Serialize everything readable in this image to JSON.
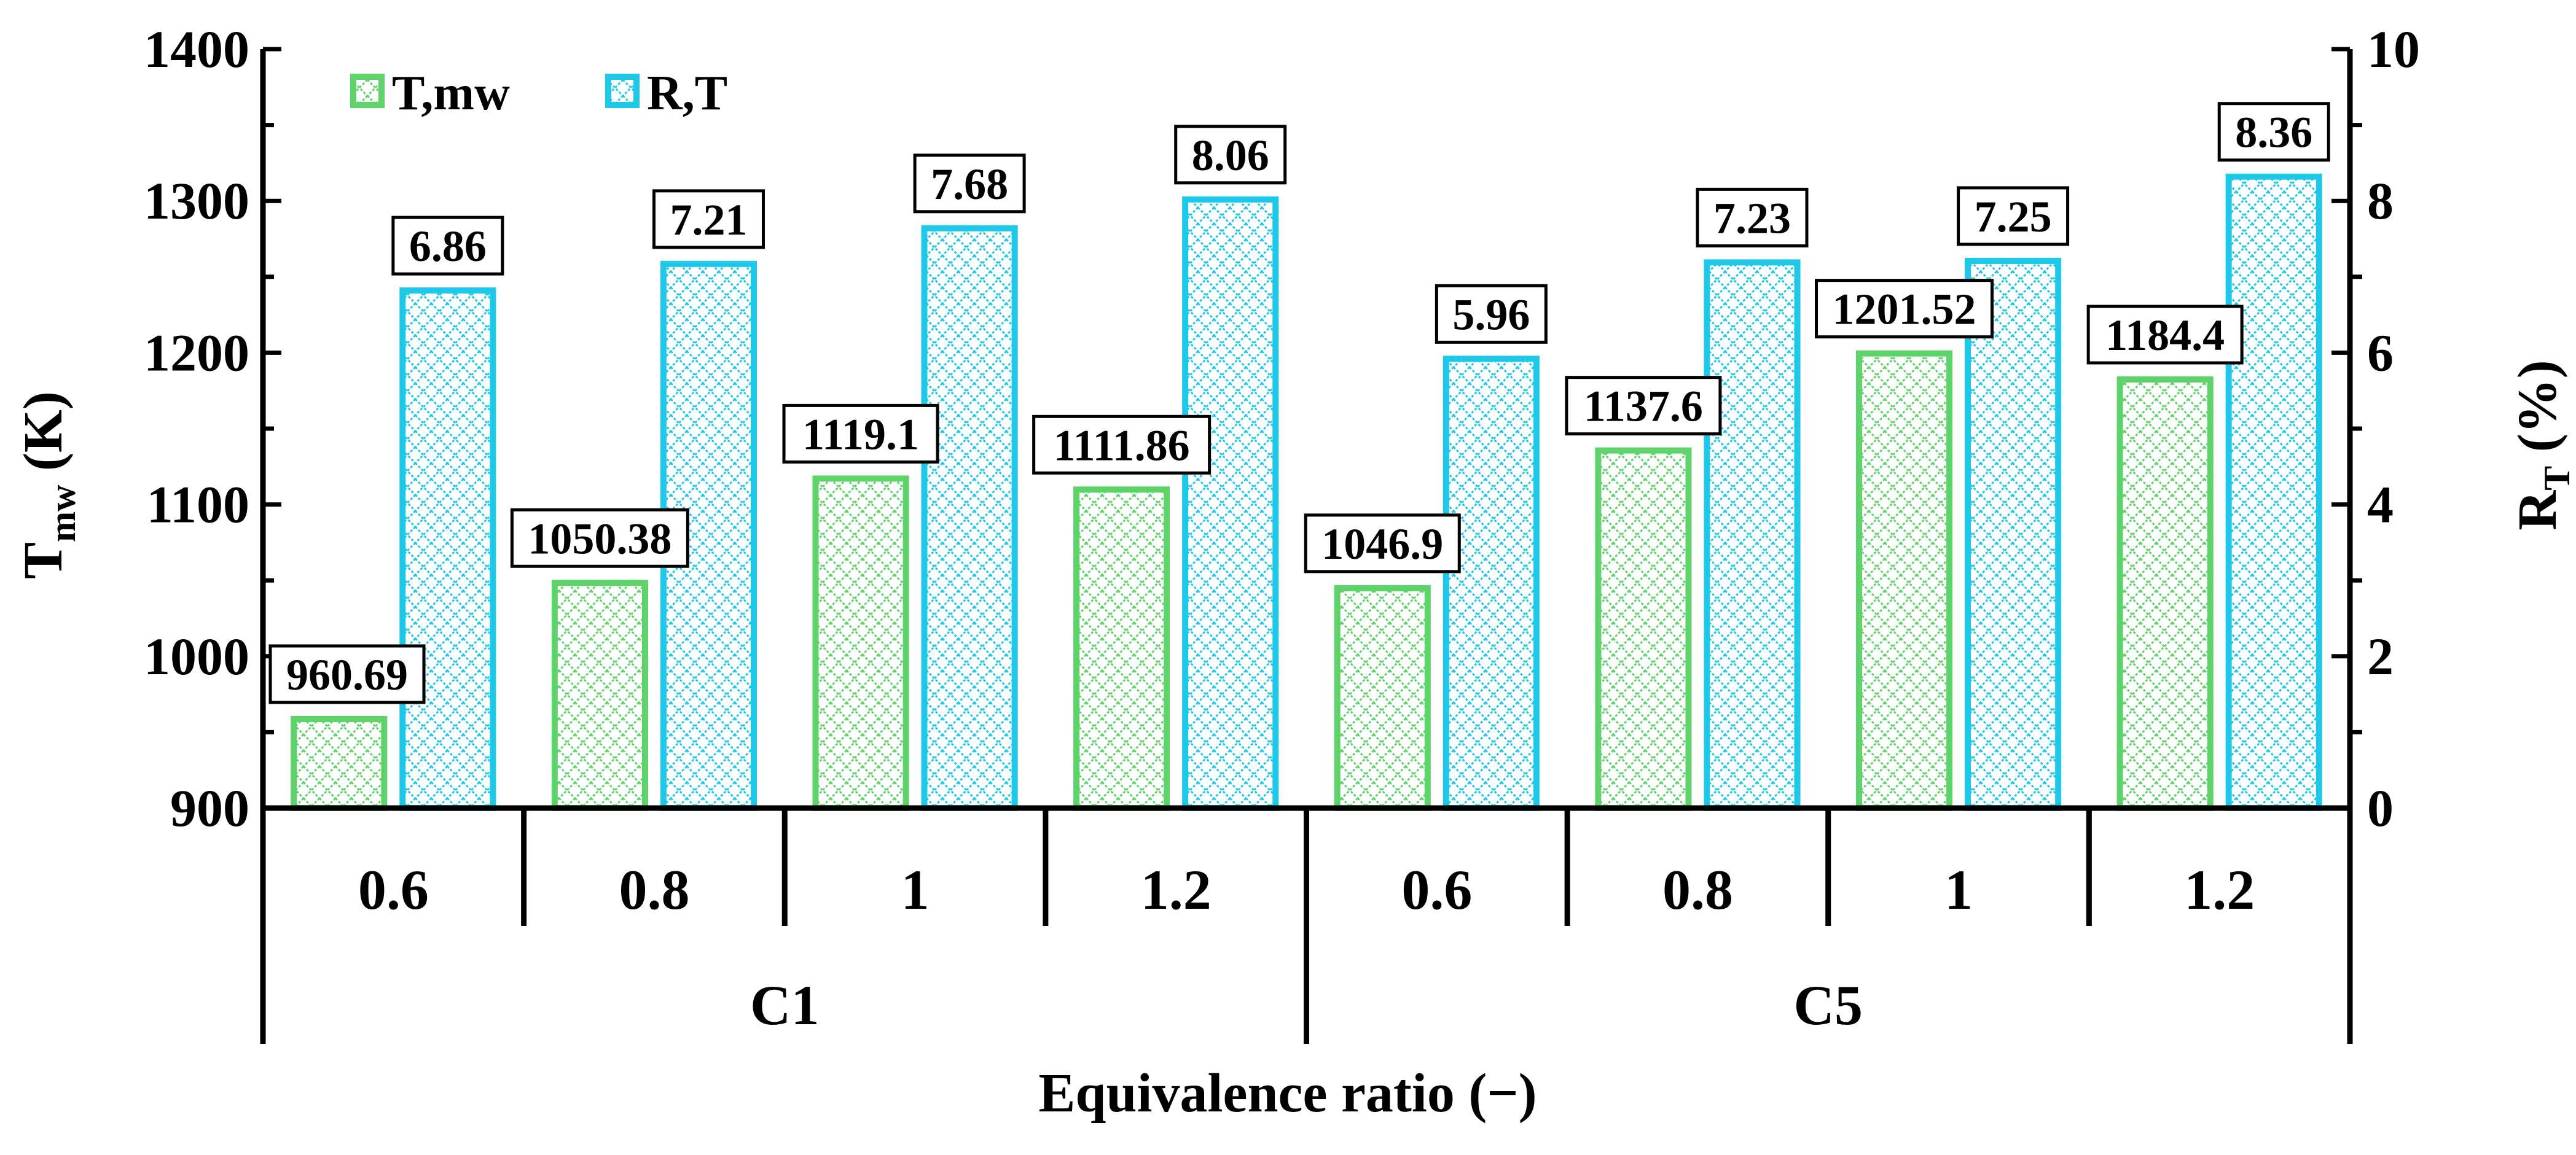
{
  "chart_data": {
    "type": "bar",
    "xlabel": "Equivalence ratio (−)",
    "ylabel": "T",
    "ylabel_sub": "mw",
    "ylabel_unit": " (K)",
    "y2label": "R",
    "y2label_sub": "T",
    "y2label_unit": " (%)",
    "ylim": [
      900,
      1400
    ],
    "yticks": [
      "900",
      "1000",
      "1100",
      "1200",
      "1300",
      "1400"
    ],
    "y2lim": [
      0,
      10
    ],
    "y2ticks": [
      "0",
      "2",
      "4",
      "6",
      "8",
      "10"
    ],
    "categories": [
      "0.6",
      "0.8",
      "1",
      "1.2",
      "0.6",
      "0.8",
      "1",
      "1.2"
    ],
    "groups": [
      {
        "name": "C1",
        "span": [
          0,
          3
        ]
      },
      {
        "name": "C5",
        "span": [
          4,
          7
        ]
      }
    ],
    "series": [
      {
        "name": "T,mw",
        "axis": "left",
        "color": "#5ED36A",
        "values": [
          960.69,
          1050.38,
          1119.1,
          1111.86,
          1046.9,
          1137.6,
          1201.52,
          1184.4
        ],
        "labels": [
          "960.69",
          "1050.38",
          "1119.1",
          "1111.86",
          "1046.9",
          "1137.6",
          "1201.52",
          "1184.4"
        ]
      },
      {
        "name": "R,T",
        "axis": "right",
        "color": "#1EC8E8",
        "values": [
          6.86,
          7.21,
          7.68,
          8.06,
          5.96,
          7.23,
          7.25,
          8.36
        ],
        "labels": [
          "6.86",
          "7.21",
          "7.68",
          "8.06",
          "5.96",
          "7.23",
          "7.25",
          "8.36"
        ]
      }
    ]
  }
}
